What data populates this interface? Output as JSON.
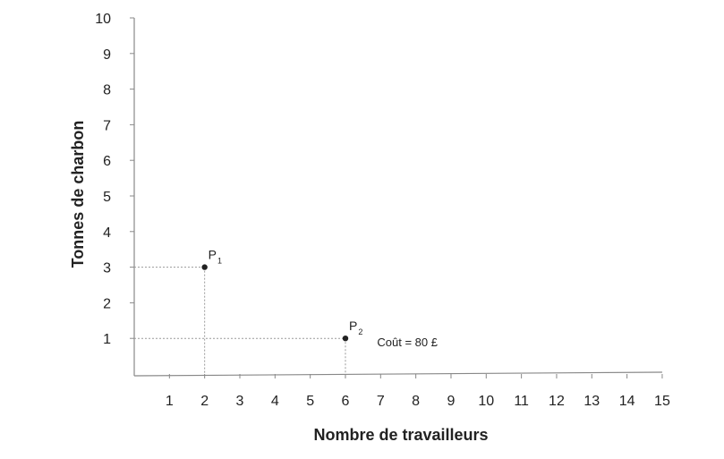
{
  "chart_data": {
    "type": "scatter",
    "title": "",
    "xlabel": "Nombre de travailleurs",
    "ylabel": "Tonnes de charbon",
    "xlim": [
      0,
      15
    ],
    "ylim": [
      0,
      10
    ],
    "x_ticks": [
      1,
      2,
      3,
      4,
      5,
      6,
      7,
      8,
      9,
      10,
      11,
      12,
      13,
      14,
      15
    ],
    "y_ticks": [
      1,
      2,
      3,
      4,
      5,
      6,
      7,
      8,
      9,
      10
    ],
    "grid": false,
    "points": [
      {
        "label": "P",
        "subscript": "1",
        "x": 2,
        "y": 3
      },
      {
        "label": "P",
        "subscript": "2",
        "x": 6,
        "y": 1
      }
    ],
    "annotations": [
      {
        "text": "Coût = 80 £",
        "x": 6.9,
        "y": 0.78
      }
    ],
    "colors": {
      "axis": "#888888",
      "point": "#222222",
      "guide": "#999999",
      "text": "#222222"
    }
  }
}
